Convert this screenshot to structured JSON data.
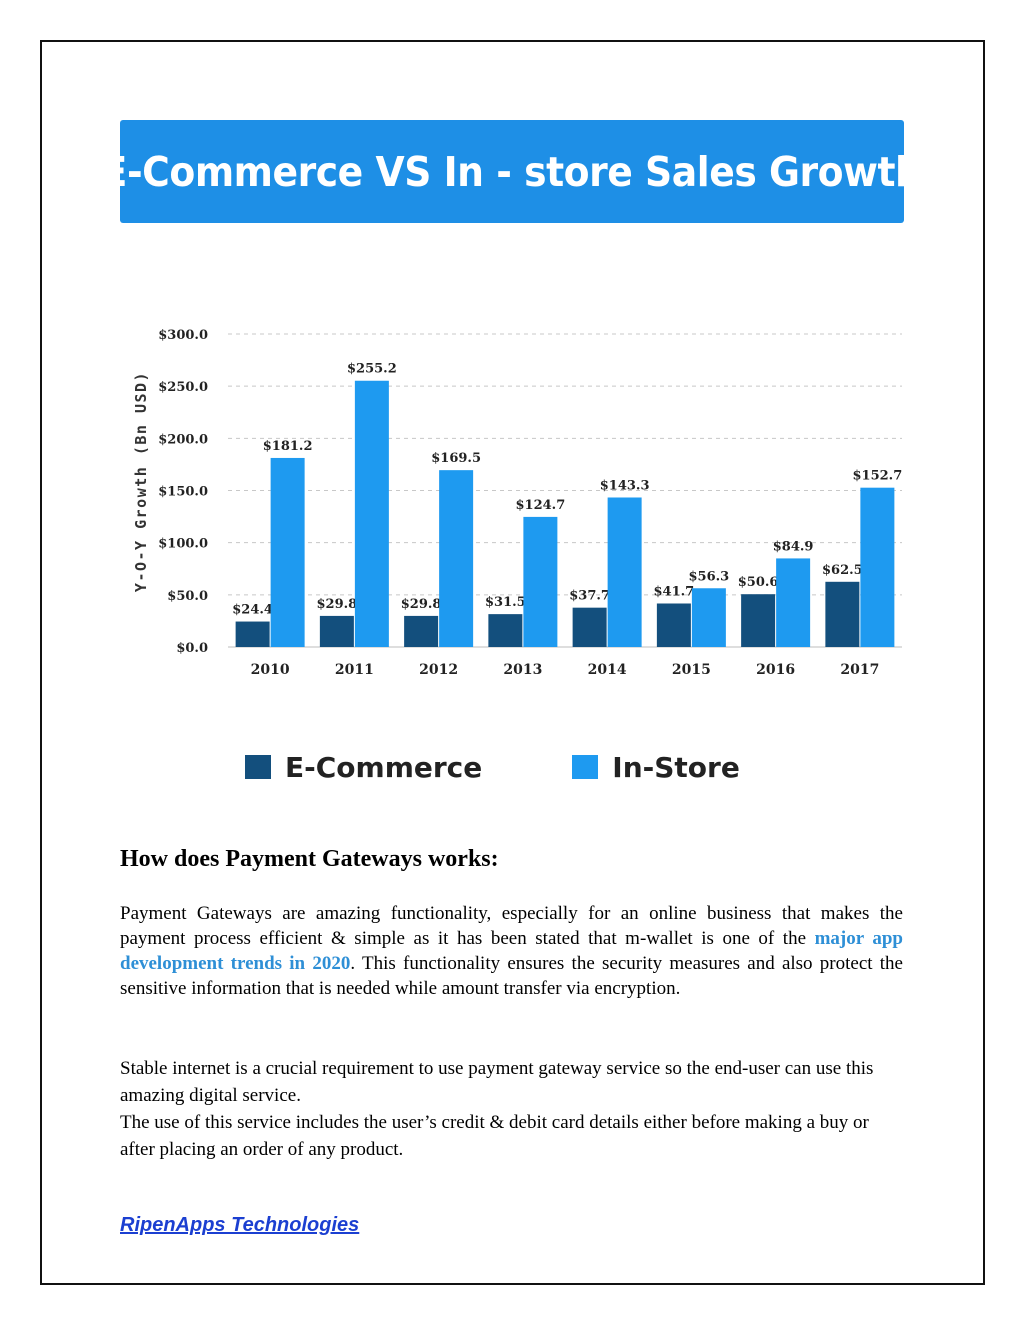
{
  "banner": {
    "title": "E-Commerce VS In - store Sales Growth"
  },
  "chart_data": {
    "type": "bar",
    "title": "",
    "xlabel": "",
    "ylabel": "Y-O-Y Growth (Bn USD)",
    "ylim": [
      0,
      300
    ],
    "yticks": [
      0,
      50,
      100,
      150,
      200,
      250,
      300
    ],
    "ytick_labels": [
      "$0.0",
      "$50.0",
      "$100.0",
      "$150.0",
      "$200.0",
      "$250.0",
      "$300.0"
    ],
    "grid": true,
    "legend_position": "bottom",
    "categories": [
      "2010",
      "2011",
      "2012",
      "2013",
      "2014",
      "2015",
      "2016",
      "2017"
    ],
    "series": [
      {
        "name": "E-Commerce",
        "color": "#134f7d",
        "values": [
          24.4,
          29.8,
          29.8,
          31.5,
          37.7,
          41.7,
          50.6,
          62.5
        ],
        "labels": [
          "$24.4",
          "$29.8",
          "$29.8",
          "$31.5",
          "$37.7",
          "$41.7",
          "$50.6",
          "$62.5"
        ]
      },
      {
        "name": "In-Store",
        "color": "#1e9af0",
        "values": [
          181.2,
          255.2,
          169.5,
          124.7,
          143.3,
          56.3,
          84.9,
          152.7
        ],
        "labels": [
          "$181.2",
          "$255.2",
          "$169.5",
          "$124.7",
          "$143.3",
          "$56.3",
          "$84.9",
          "$152.7"
        ]
      }
    ]
  },
  "section": {
    "heading": "How does Payment Gateways works:",
    "para1_before": "Payment Gateways are amazing functionality, especially for an online business that makes the payment process efficient & simple as it has been stated that m-wallet is one of the ",
    "para1_link": "major app development trends in 2020",
    "para1_after": ". This functionality ensures the security measures and also protect the sensitive information that is needed while amount transfer via encryption.",
    "para2_line1": "Stable internet is a crucial requirement to use payment gateway service so the end-user can use this amazing digital service.",
    "para2_line2": "The use of this service includes the user’s credit & debit card details either before making a buy or after placing an order of any product."
  },
  "footer": {
    "link": "RipenApps Technologies"
  }
}
